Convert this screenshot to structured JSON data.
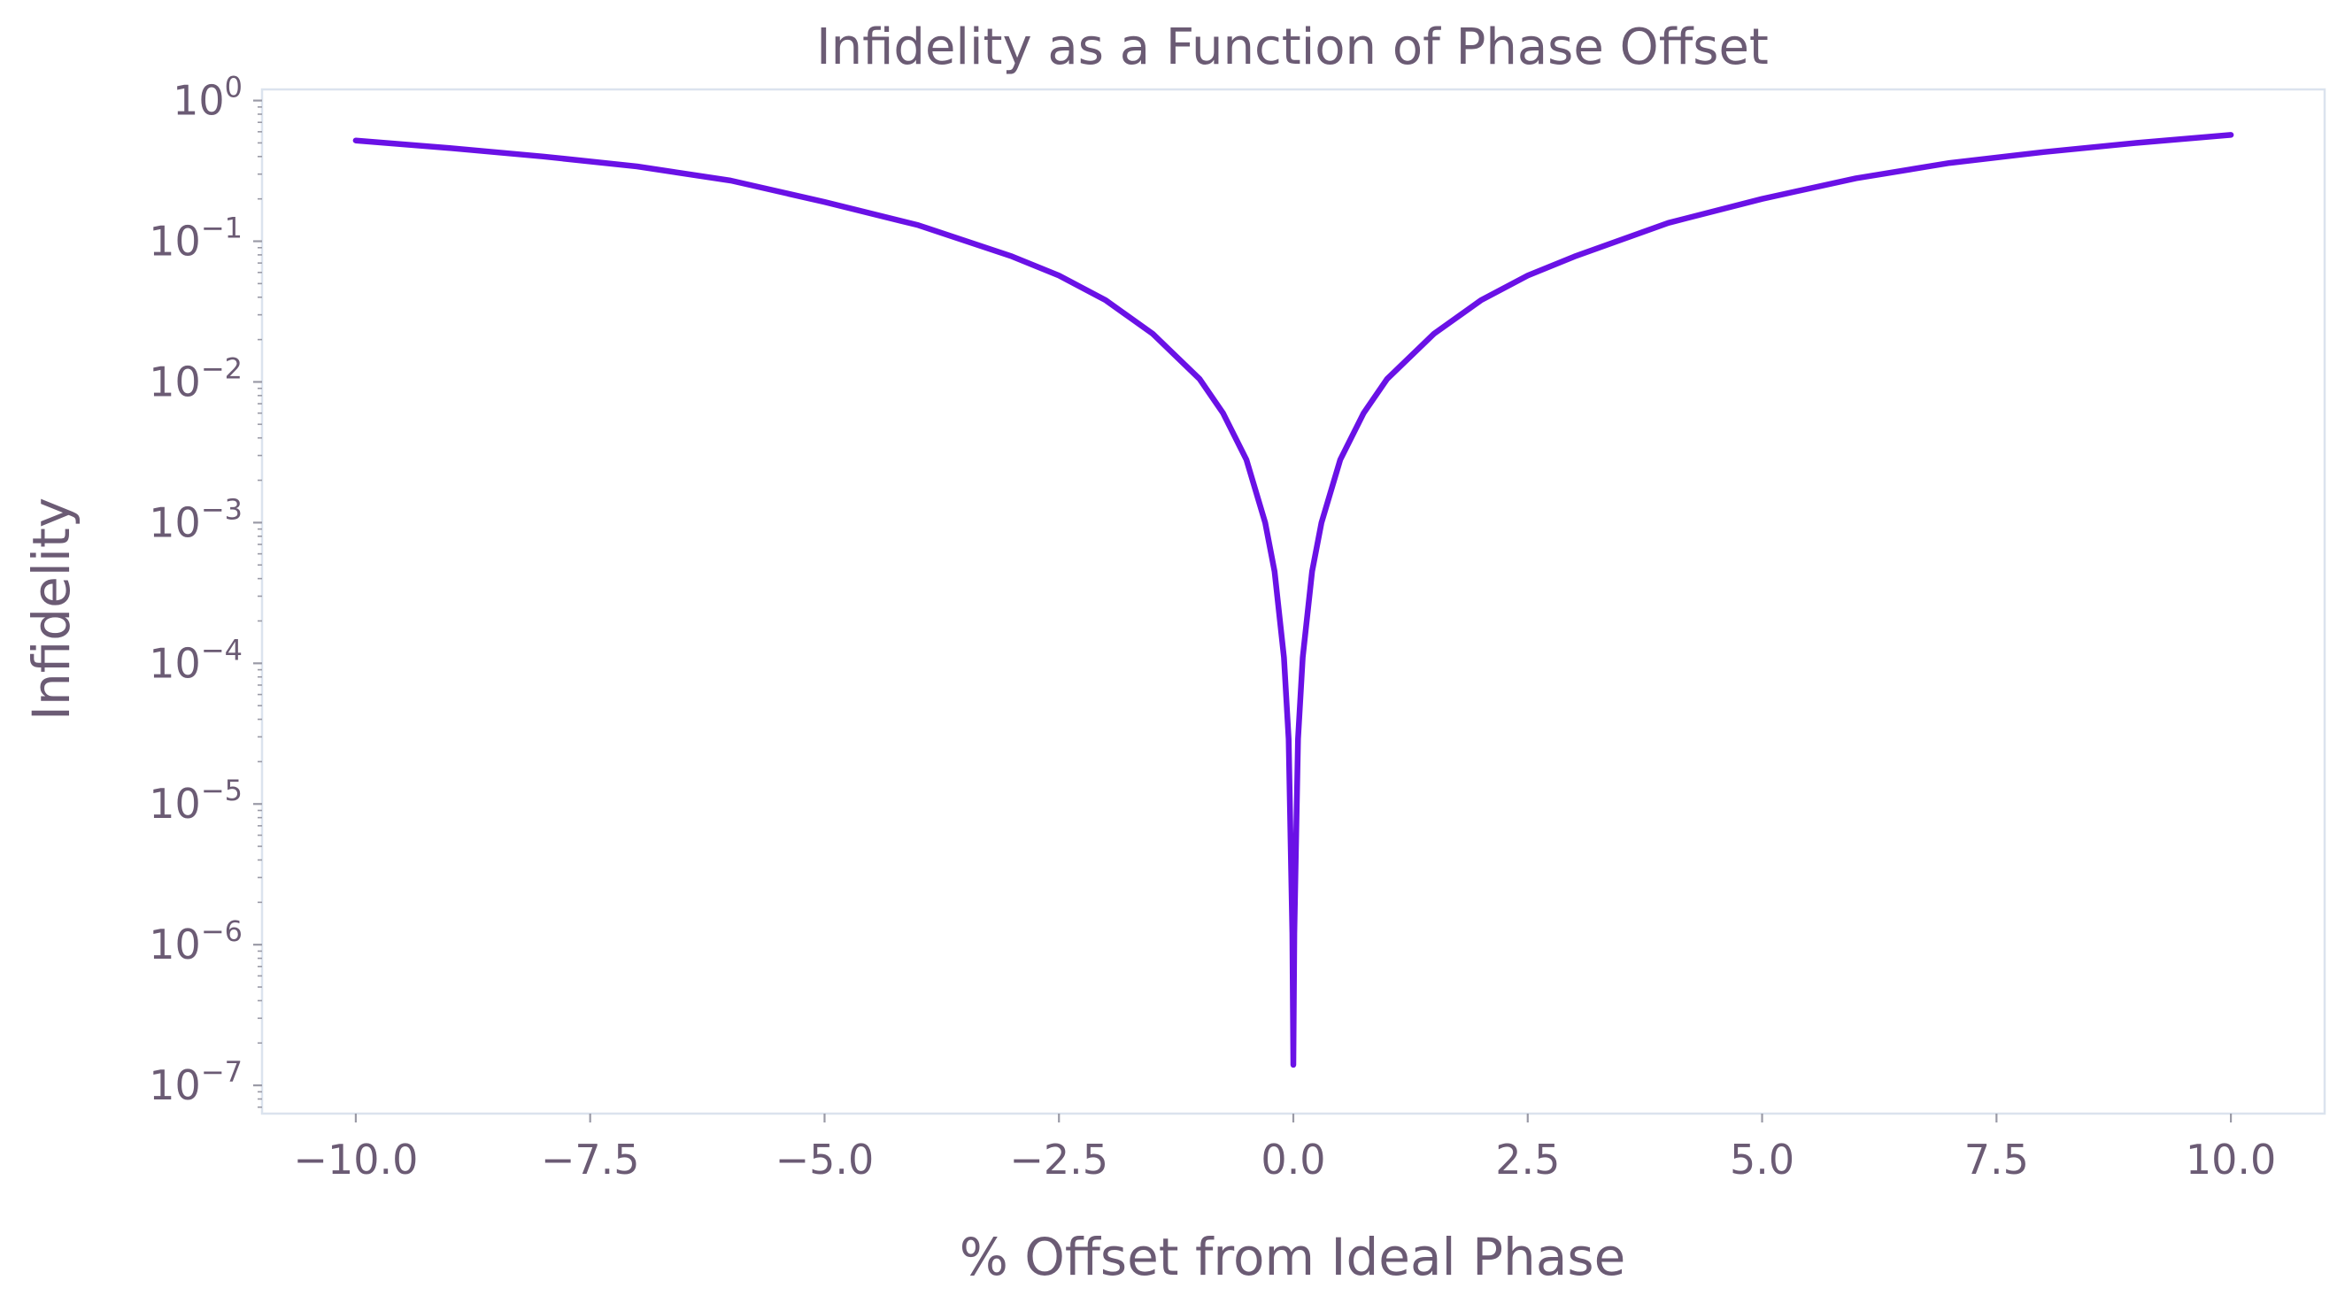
{
  "chart_data": {
    "type": "line",
    "title": "Infidelity as a Function of Phase Offset",
    "xlabel": "% Offset from Ideal Phase",
    "ylabel": "Infidelity",
    "xlim": [
      -11,
      11
    ],
    "ylim": [
      6.3e-08,
      1.2
    ],
    "yscale": "log",
    "grid": false,
    "x_ticks": [
      -10,
      -7.5,
      -5,
      -2.5,
      0,
      2.5,
      5,
      7.5,
      10
    ],
    "x_tick_labels": [
      "−10.0",
      "−7.5",
      "−5.0",
      "−2.5",
      "0.0",
      "2.5",
      "5.0",
      "7.5",
      "10.0"
    ],
    "y_ticks": [
      {
        "value": 1e-07,
        "base": "10",
        "exp": "−7"
      },
      {
        "value": 1e-06,
        "base": "10",
        "exp": "−6"
      },
      {
        "value": 1e-05,
        "base": "10",
        "exp": "−5"
      },
      {
        "value": 0.0001,
        "base": "10",
        "exp": "−4"
      },
      {
        "value": 0.001,
        "base": "10",
        "exp": "−3"
      },
      {
        "value": 0.01,
        "base": "10",
        "exp": "−2"
      },
      {
        "value": 0.1,
        "base": "10",
        "exp": "−1"
      },
      {
        "value": 1,
        "base": "10",
        "exp": "0"
      }
    ],
    "series": [
      {
        "color": "#6a11e6",
        "x": [
          -10,
          -9,
          -8,
          -7,
          -6,
          -5,
          -4,
          -3,
          -2.5,
          -2,
          -1.5,
          -1,
          -0.75,
          -0.5,
          -0.3,
          -0.2,
          -0.1,
          -0.05,
          -0.01,
          0,
          0.01,
          0.05,
          0.1,
          0.2,
          0.3,
          0.5,
          0.75,
          1,
          1.5,
          2,
          2.5,
          3,
          4,
          5,
          6,
          7,
          8,
          9,
          10
        ],
        "y": [
          0.52,
          0.46,
          0.4,
          0.34,
          0.27,
          0.19,
          0.13,
          0.078,
          0.057,
          0.038,
          0.022,
          0.0105,
          0.006,
          0.0028,
          0.001,
          0.00045,
          0.00011,
          2.9e-05,
          1.2e-06,
          1.4e-07,
          1.2e-06,
          2.9e-05,
          0.00011,
          0.00045,
          0.001,
          0.0028,
          0.006,
          0.0105,
          0.022,
          0.038,
          0.057,
          0.078,
          0.135,
          0.2,
          0.28,
          0.36,
          0.43,
          0.5,
          0.57
        ]
      }
    ]
  }
}
